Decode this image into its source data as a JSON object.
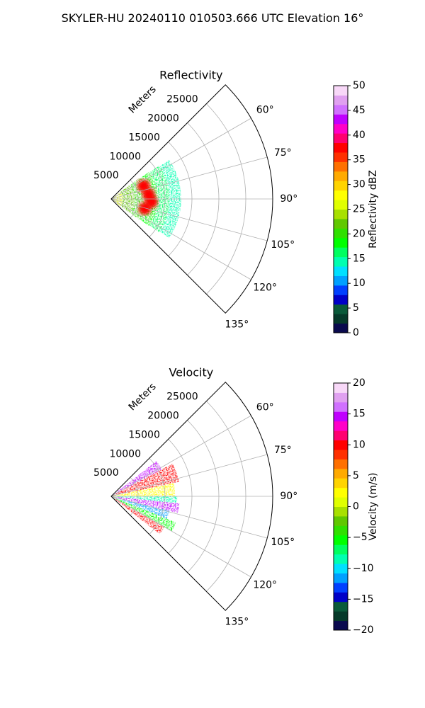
{
  "figure_title": "SKYLER-HU  20240110  010503.666 UTC Elevation 16°",
  "chart_data": [
    {
      "type": "heatmap",
      "projection": "polar-sector",
      "title": "Reflectivity",
      "range_axis_label": "Meters",
      "range_ticks": [
        5000,
        10000,
        15000,
        20000,
        25000
      ],
      "range_tick_labels": [
        "5000",
        "10000",
        "15000",
        "20000",
        "25000"
      ],
      "range_max_m": 30000,
      "azimuth_range_deg": [
        45,
        135
      ],
      "azimuth_ticks": [
        60,
        75,
        90,
        105,
        120,
        135
      ],
      "azimuth_tick_labels": [
        "60°",
        "75°",
        "90°",
        "105°",
        "120°",
        "135°"
      ],
      "grid": true,
      "colorbar": {
        "label": "Reflectivity dBZ",
        "range": [
          0,
          50
        ],
        "ticks": [
          0,
          5,
          10,
          15,
          20,
          25,
          30,
          35,
          40,
          45,
          50
        ],
        "tick_labels": [
          "0",
          "5",
          "10",
          "15",
          "20",
          "25",
          "30",
          "35",
          "40",
          "45",
          "50"
        ],
        "colors": [
          "#0a0a4e",
          "#063a2a",
          "#0a5a3a",
          "#0000c8",
          "#0040ff",
          "#00a0ff",
          "#00e0ff",
          "#00ffb0",
          "#00ff60",
          "#00ff00",
          "#30e000",
          "#60c800",
          "#a8e000",
          "#e0ff00",
          "#ffff00",
          "#ffd400",
          "#ffaa00",
          "#ff7000",
          "#ff3000",
          "#ff0000",
          "#ff0070",
          "#ff00c8",
          "#c000ff",
          "#d070ff",
          "#e0a0f0",
          "#f8d8f8"
        ]
      },
      "approx_field": {
        "coverage_deg": [
          52,
          128
        ],
        "coverage_range_m": [
          0,
          13000
        ],
        "near_range_dbz": 25,
        "far_range_dbz": 15,
        "cores_dbz": [
          {
            "azimuth_deg": 68,
            "range_m": 6500,
            "value": 38
          },
          {
            "azimuth_deg": 83,
            "range_m": 7000,
            "value": 37
          },
          {
            "azimuth_deg": 94,
            "range_m": 7500,
            "value": 38
          },
          {
            "azimuth_deg": 106,
            "range_m": 6500,
            "value": 37
          }
        ]
      }
    },
    {
      "type": "heatmap",
      "projection": "polar-sector",
      "title": "Velocity",
      "range_axis_label": "Meters",
      "range_ticks": [
        5000,
        10000,
        15000,
        20000,
        25000
      ],
      "range_tick_labels": [
        "5000",
        "10000",
        "15000",
        "20000",
        "25000"
      ],
      "range_max_m": 30000,
      "azimuth_range_deg": [
        45,
        135
      ],
      "azimuth_ticks": [
        60,
        75,
        90,
        105,
        120,
        135
      ],
      "azimuth_tick_labels": [
        "60°",
        "75°",
        "90°",
        "105°",
        "120°",
        "135°"
      ],
      "grid": true,
      "colorbar": {
        "label": "Velocity (m/s)",
        "range": [
          -20,
          20
        ],
        "ticks": [
          -20,
          -15,
          -10,
          -5,
          0,
          5,
          10,
          15,
          20
        ],
        "tick_labels": [
          "−20",
          "−15",
          "−10",
          "−5",
          "0",
          "5",
          "10",
          "15",
          "20"
        ],
        "colors": [
          "#0a0a4e",
          "#063a2a",
          "#0a5a3a",
          "#0000c8",
          "#0040ff",
          "#00a0ff",
          "#00e0ff",
          "#00ffb0",
          "#00ff60",
          "#00ff00",
          "#30e000",
          "#60c800",
          "#a8e000",
          "#e0ff00",
          "#ffff00",
          "#ffd400",
          "#ffaa00",
          "#ff7000",
          "#ff3000",
          "#ff0000",
          "#ff0070",
          "#ff00c8",
          "#c000ff",
          "#d070ff",
          "#e0a0f0",
          "#f8d8f8"
        ]
      },
      "approx_field": {
        "coverage_deg": [
          52,
          128
        ],
        "coverage_range_m": [
          0,
          13000
        ],
        "bands": [
          {
            "azimuth_deg": [
              52,
              62
            ],
            "value": 15
          },
          {
            "azimuth_deg": [
              62,
              78
            ],
            "value": 10
          },
          {
            "azimuth_deg": [
              78,
              90
            ],
            "value": 2
          },
          {
            "azimuth_deg": [
              90,
              96
            ],
            "value": -8
          },
          {
            "azimuth_deg": [
              96,
              104
            ],
            "value": 14
          },
          {
            "azimuth_deg": [
              104,
              112
            ],
            "value": -12
          },
          {
            "azimuth_deg": [
              112,
              120
            ],
            "value": -6
          },
          {
            "azimuth_deg": [
              120,
              128
            ],
            "value": 10
          }
        ]
      }
    }
  ]
}
